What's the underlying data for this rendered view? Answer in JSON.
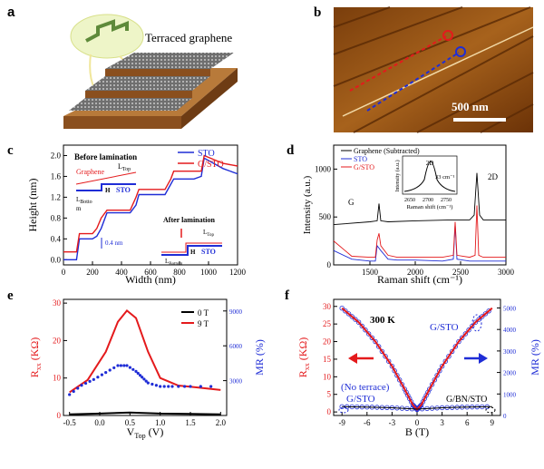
{
  "panels": {
    "a": {
      "label": "a",
      "caption": "Terraced graphene"
    },
    "b": {
      "label": "b",
      "scalebar": "500 nm"
    },
    "c": {
      "label": "c",
      "ylabel": "Height (nm)",
      "xlabel": "Width (nm)",
      "before": "Before lamination",
      "after": "After lamination",
      "graphene": "Graphene",
      "ltop": "L",
      "ltop_sub": "Top",
      "lbottom": "L",
      "lbottom_sub": "Botto",
      "lbottom_m": "m",
      "lbottom2_sub": "Bottom",
      "h": "H",
      "sto": "STO",
      "step": "0.4 nm",
      "legend": [
        "STO",
        "G/STO"
      ]
    },
    "d": {
      "label": "d",
      "ylabel": "Intensity (a.u.)",
      "xlabel": "Raman shift (cm⁻¹)",
      "legend": [
        "Graphene (Subtracted)",
        "STO",
        "G/STO"
      ],
      "peak_g": "G",
      "peak_2d": "2D",
      "inset_peak": "2D",
      "inset_fwhm": "33 cm⁻¹",
      "inset_ylabel": "Intensity (a.u.)",
      "inset_xlabel": "Raman shift (cm⁻¹)"
    },
    "e": {
      "label": "e",
      "ylabel": "R",
      "ylabel_sub": "xx",
      "ylabel_unit": " (KΩ)",
      "y2label": "MR (%)",
      "xlabel": "V",
      "xlabel_sub": "Top",
      "xlabel_unit": " (V)",
      "legend": [
        "0 T",
        "9 T"
      ]
    },
    "f": {
      "label": "f",
      "ylabel": "R",
      "ylabel_sub": "xx",
      "ylabel_unit": " (KΩ)",
      "y2label": "MR (%)",
      "xlabel": "B (T)",
      "temp": "300 K",
      "gsto": "G/STO",
      "noterrace": "(No terrace)",
      "gsto2": "G/STO",
      "gbnsto": "G/BN/STO"
    }
  },
  "colors": {
    "red": "#e41a1c",
    "blue": "#1f2dd6",
    "black": "#000000"
  },
  "chart_data": [
    {
      "panel": "c",
      "type": "line",
      "xlim": [
        0,
        1200
      ],
      "ylim": [
        -0.1,
        2.2
      ],
      "xticks": [
        0,
        200,
        400,
        600,
        800,
        1000,
        1200
      ],
      "yticks": [
        "0.0",
        "0.4",
        "0.8",
        "1.2",
        "1.6",
        "2.0"
      ],
      "series": [
        {
          "name": "STO",
          "x": [
            0,
            90,
            110,
            200,
            230,
            260,
            300,
            460,
            500,
            520,
            700,
            740,
            760,
            900,
            950,
            970,
            1100,
            1200
          ],
          "y": [
            0.0,
            0.0,
            0.4,
            0.4,
            0.45,
            0.6,
            0.9,
            0.9,
            1.05,
            1.25,
            1.25,
            1.45,
            1.55,
            1.55,
            1.6,
            1.95,
            1.75,
            1.65
          ]
        },
        {
          "name": "G/STO",
          "x": [
            0,
            90,
            110,
            200,
            230,
            260,
            300,
            460,
            500,
            520,
            700,
            740,
            760,
            900,
            950,
            970,
            1100,
            1200
          ],
          "y": [
            0.15,
            0.15,
            0.5,
            0.5,
            0.6,
            0.8,
            0.95,
            0.95,
            1.2,
            1.35,
            1.35,
            1.55,
            1.7,
            1.7,
            1.7,
            2.0,
            1.85,
            1.8
          ]
        }
      ]
    },
    {
      "panel": "d",
      "type": "line",
      "xlim": [
        1100,
        3000
      ],
      "ylim": [
        0,
        1250
      ],
      "xticks": [
        1500,
        2000,
        2500,
        3000
      ],
      "yticks": [
        0,
        500,
        1000
      ],
      "inset_xticks": [
        2650,
        2700,
        2750
      ],
      "series": [
        {
          "name": "Graphene (Subtracted)",
          "x": [
            1100,
            1500,
            1580,
            1600,
            1620,
            1700,
            2000,
            2400,
            2600,
            2650,
            2680,
            2710,
            2750,
            3000
          ],
          "y": [
            420,
            450,
            460,
            640,
            460,
            450,
            460,
            470,
            470,
            520,
            960,
            520,
            470,
            470
          ]
        },
        {
          "name": "STO",
          "x": [
            1100,
            1300,
            1500,
            1560,
            1580,
            1620,
            1700,
            1800,
            2000,
            2300,
            2420,
            2440,
            2460,
            2600,
            2650,
            3000
          ],
          "y": [
            150,
            60,
            40,
            40,
            200,
            150,
            60,
            50,
            50,
            40,
            60,
            420,
            60,
            40,
            40,
            40
          ]
        },
        {
          "name": "G/STO",
          "x": [
            1100,
            1300,
            1500,
            1560,
            1580,
            1600,
            1620,
            1700,
            1800,
            2000,
            2300,
            2420,
            2440,
            2460,
            2600,
            2660,
            2680,
            2700,
            2750,
            3000
          ],
          "y": [
            250,
            90,
            80,
            80,
            260,
            330,
            200,
            100,
            80,
            80,
            80,
            100,
            450,
            100,
            80,
            100,
            620,
            100,
            80,
            80
          ]
        }
      ]
    },
    {
      "panel": "e",
      "type": "line",
      "xlim": [
        -0.6,
        2.1
      ],
      "ylim": [
        0,
        31
      ],
      "y2lim": [
        0,
        10000
      ],
      "xticks": [
        "-0.5",
        "0.0",
        "0.5",
        "1.0",
        "1.5",
        "2.0"
      ],
      "yticks": [
        0,
        10,
        20,
        30
      ],
      "y2ticks": [
        3000,
        6000,
        9000
      ],
      "series": [
        {
          "name": "0 T",
          "x": [
            -0.5,
            0.0,
            0.5,
            1.0,
            1.5,
            2.0
          ],
          "y": [
            0.3,
            0.5,
            0.8,
            0.5,
            0.4,
            0.3
          ]
        },
        {
          "name": "9 T",
          "x": [
            -0.5,
            -0.2,
            0.1,
            0.3,
            0.45,
            0.6,
            0.8,
            1.0,
            1.3,
            1.6,
            2.0
          ],
          "y": [
            6.2,
            9.5,
            17,
            25,
            28,
            26,
            17,
            10,
            8,
            7.5,
            6.8
          ]
        },
        {
          "name": "MR",
          "axis": "y2",
          "x": [
            -0.5,
            -0.3,
            -0.1,
            0.1,
            0.3,
            0.45,
            0.6,
            0.7,
            0.8,
            1.0,
            1.2,
            1.5,
            2.0
          ],
          "y": [
            1800,
            2600,
            3100,
            3700,
            4300,
            4300,
            3800,
            3300,
            2800,
            2500,
            2500,
            2500,
            2500
          ]
        }
      ]
    },
    {
      "panel": "f",
      "type": "line",
      "xlim": [
        -10,
        10
      ],
      "ylim": [
        -1,
        32
      ],
      "y2lim": [
        0,
        5400
      ],
      "xticks": [
        -9,
        -6,
        -3,
        0,
        3,
        6,
        9
      ],
      "yticks": [
        0,
        5,
        10,
        15,
        20,
        25,
        30
      ],
      "y2ticks": [
        0,
        1000,
        2000,
        3000,
        4000,
        5000
      ],
      "series": [
        {
          "name": "G/STO",
          "x": [
            -9,
            -7,
            -5,
            -3,
            -1.5,
            -0.5,
            0,
            0.5,
            1.5,
            3,
            5,
            7,
            9
          ],
          "y": [
            29.5,
            25.5,
            20,
            13,
            6.5,
            2,
            0.7,
            2,
            6.5,
            13,
            20,
            25.5,
            29.5
          ]
        },
        {
          "name": "G/STO (No terrace)",
          "x": [
            -9,
            -6,
            -3,
            0,
            3,
            6,
            9
          ],
          "y": [
            1.5,
            1.4,
            1.2,
            0.8,
            1.2,
            1.4,
            1.5
          ]
        }
      ]
    }
  ]
}
